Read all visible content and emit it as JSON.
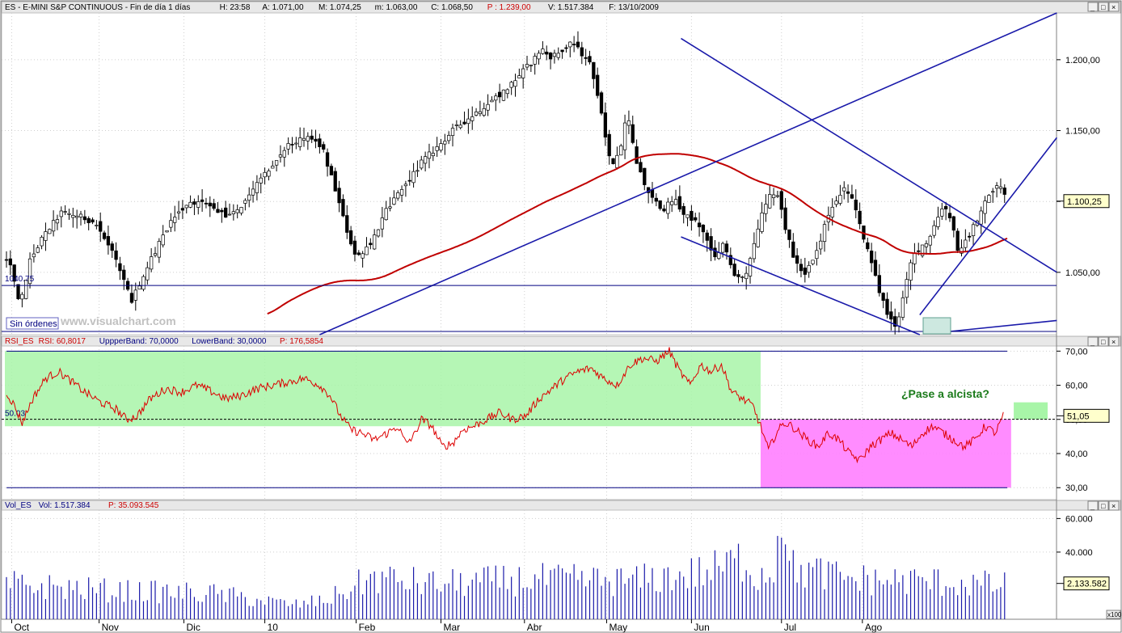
{
  "header": {
    "price": [
      {
        "text": "ES - E-MINI S&P CONTINUOUS - Fin de día 1 días",
        "color": "#000000"
      },
      {
        "text": "H: 23:58",
        "color": "#000000"
      },
      {
        "text": "A: 1.071,00",
        "color": "#000000"
      },
      {
        "text": "M: 1.074,25",
        "color": "#000000"
      },
      {
        "text": "m: 1.063,00",
        "color": "#000000"
      },
      {
        "text": "C: 1.068,50",
        "color": "#000000"
      },
      {
        "text": "P : 1.239,00",
        "color": "#cc0000"
      },
      {
        "text": "V: 1.517.384",
        "color": "#000000"
      },
      {
        "text": "F: 13/10/2009",
        "color": "#000000"
      }
    ],
    "rsi": [
      {
        "text": "RSI_ES",
        "color": "#cc0000"
      },
      {
        "text": "RSI: 60,8017",
        "color": "#cc0000"
      },
      {
        "text": "UppperBand: 70,0000",
        "color": "#000080"
      },
      {
        "text": "LowerBand: 30,0000",
        "color": "#000080"
      },
      {
        "text": "P: 176,5854",
        "color": "#cc0000"
      }
    ],
    "vol": [
      {
        "text": "Vol_ES",
        "color": "#000080"
      },
      {
        "text": "Vol: 1.517.384",
        "color": "#000080"
      },
      {
        "text": "P: 35.093.545",
        "color": "#cc0000"
      }
    ]
  },
  "watermark": "www.visualchart.com",
  "orders_label": "Sin órdenes",
  "x100_label": "x100",
  "chart_data": [
    {
      "type": "candlestick",
      "x_months": [
        "Oct",
        "Nov",
        "Dic",
        "10",
        "Feb",
        "Mar",
        "Abr",
        "May",
        "Jun",
        "Jul",
        "Ago"
      ],
      "y_ticks": [
        "1.200,00",
        "1.150,00",
        "1.100,00",
        "1.050,00"
      ],
      "y_tick_values": [
        1200,
        1150,
        1100,
        1050
      ],
      "ylim": [
        1006,
        1233
      ],
      "current_value": 1100.25,
      "current_label": "1.100,25",
      "horizontal_level": 1040.75,
      "horizontal_level_label": "1040.75",
      "keypoints": [
        [
          0,
          1058
        ],
        [
          5,
          1050
        ],
        [
          10,
          1025
        ],
        [
          18,
          1058
        ],
        [
          28,
          1075
        ],
        [
          42,
          1092
        ],
        [
          55,
          1090
        ],
        [
          68,
          1085
        ],
        [
          82,
          1062
        ],
        [
          96,
          1030
        ],
        [
          110,
          1058
        ],
        [
          125,
          1085
        ],
        [
          140,
          1100
        ],
        [
          155,
          1098
        ],
        [
          168,
          1090
        ],
        [
          182,
          1098
        ],
        [
          196,
          1118
        ],
        [
          208,
          1128
        ],
        [
          214,
          1138
        ],
        [
          222,
          1142
        ],
        [
          232,
          1145
        ],
        [
          242,
          1138
        ],
        [
          252,
          1108
        ],
        [
          260,
          1082
        ],
        [
          268,
          1060
        ],
        [
          280,
          1072
        ],
        [
          292,
          1095
        ],
        [
          305,
          1110
        ],
        [
          318,
          1128
        ],
        [
          330,
          1138
        ],
        [
          342,
          1150
        ],
        [
          356,
          1160
        ],
        [
          370,
          1170
        ],
        [
          384,
          1180
        ],
        [
          396,
          1192
        ],
        [
          404,
          1200
        ],
        [
          410,
          1208
        ],
        [
          416,
          1202
        ],
        [
          424,
          1205
        ],
        [
          434,
          1212
        ],
        [
          440,
          1205
        ],
        [
          446,
          1200
        ],
        [
          452,
          1182
        ],
        [
          458,
          1150
        ],
        [
          464,
          1125
        ],
        [
          470,
          1135
        ],
        [
          476,
          1165
        ],
        [
          482,
          1128
        ],
        [
          490,
          1110
        ],
        [
          496,
          1100
        ],
        [
          504,
          1095
        ],
        [
          512,
          1102
        ],
        [
          518,
          1092
        ],
        [
          526,
          1088
        ],
        [
          534,
          1078
        ],
        [
          542,
          1060
        ],
        [
          550,
          1070
        ],
        [
          556,
          1050
        ],
        [
          566,
          1045
        ],
        [
          574,
          1075
        ],
        [
          582,
          1100
        ],
        [
          590,
          1108
        ],
        [
          596,
          1085
        ],
        [
          604,
          1058
        ],
        [
          612,
          1048
        ],
        [
          620,
          1062
        ],
        [
          628,
          1085
        ],
        [
          636,
          1102
        ],
        [
          642,
          1108
        ],
        [
          650,
          1098
        ],
        [
          660,
          1065
        ],
        [
          668,
          1040
        ],
        [
          676,
          1018
        ],
        [
          682,
          1012
        ],
        [
          688,
          1035
        ],
        [
          694,
          1060
        ],
        [
          700,
          1068
        ],
        [
          706,
          1072
        ],
        [
          712,
          1085
        ],
        [
          718,
          1098
        ],
        [
          724,
          1088
        ],
        [
          730,
          1062
        ],
        [
          740,
          1080
        ],
        [
          750,
          1100
        ],
        [
          760,
          1112
        ],
        [
          767,
          1103
        ]
      ]
    },
    {
      "type": "line",
      "indicator": "RSI",
      "y_ticks": [
        "70,00",
        "60,00",
        "50,00",
        "40,00",
        "30,00"
      ],
      "y_tick_values": [
        70,
        60,
        50,
        40,
        30
      ],
      "ylim": [
        26.5,
        71.5
      ],
      "upper_band": 70,
      "lower_band": 30,
      "reference_level": 50.03,
      "reference_label": "50.03",
      "current_value": 51.05,
      "current_label": "51,05",
      "annotation": "¿Pase a alcista?",
      "keypoints": [
        [
          0,
          58
        ],
        [
          6,
          54
        ],
        [
          12,
          49
        ],
        [
          20,
          56
        ],
        [
          30,
          62
        ],
        [
          40,
          64
        ],
        [
          50,
          61
        ],
        [
          60,
          58
        ],
        [
          72,
          55
        ],
        [
          84,
          53
        ],
        [
          92,
          50
        ],
        [
          100,
          51
        ],
        [
          110,
          56
        ],
        [
          122,
          59
        ],
        [
          134,
          58
        ],
        [
          146,
          60
        ],
        [
          158,
          58
        ],
        [
          168,
          56
        ],
        [
          180,
          57
        ],
        [
          192,
          59
        ],
        [
          204,
          60
        ],
        [
          216,
          61
        ],
        [
          228,
          62
        ],
        [
          240,
          60
        ],
        [
          248,
          57
        ],
        [
          256,
          51
        ],
        [
          264,
          47
        ],
        [
          272,
          46
        ],
        [
          282,
          44
        ],
        [
          292,
          46
        ],
        [
          300,
          48
        ],
        [
          306,
          43
        ],
        [
          312,
          45
        ],
        [
          318,
          50
        ],
        [
          326,
          48
        ],
        [
          334,
          42
        ],
        [
          342,
          43
        ],
        [
          350,
          47
        ],
        [
          358,
          48
        ],
        [
          368,
          50
        ],
        [
          378,
          52
        ],
        [
          388,
          50
        ],
        [
          398,
          51
        ],
        [
          408,
          56
        ],
        [
          418,
          59
        ],
        [
          428,
          62
        ],
        [
          438,
          64
        ],
        [
          448,
          65
        ],
        [
          458,
          62
        ],
        [
          468,
          60
        ],
        [
          478,
          66
        ],
        [
          488,
          68
        ],
        [
          498,
          67
        ],
        [
          508,
          70
        ],
        [
          516,
          64
        ],
        [
          524,
          60
        ],
        [
          532,
          66
        ],
        [
          540,
          64
        ],
        [
          548,
          66
        ],
        [
          556,
          58
        ],
        [
          564,
          56
        ],
        [
          572,
          54
        ],
        [
          578,
          48
        ],
        [
          584,
          41
        ],
        [
          590,
          46
        ],
        [
          596,
          49
        ],
        [
          602,
          48
        ],
        [
          608,
          46
        ],
        [
          614,
          44
        ],
        [
          622,
          42
        ],
        [
          630,
          46
        ],
        [
          638,
          44
        ],
        [
          646,
          40
        ],
        [
          654,
          38
        ],
        [
          662,
          42
        ],
        [
          670,
          44
        ],
        [
          678,
          46
        ],
        [
          686,
          44
        ],
        [
          694,
          42
        ],
        [
          702,
          46
        ],
        [
          710,
          48
        ],
        [
          718,
          46
        ],
        [
          726,
          44
        ],
        [
          734,
          42
        ],
        [
          742,
          44
        ],
        [
          750,
          48
        ],
        [
          758,
          46
        ],
        [
          764,
          51
        ]
      ]
    },
    {
      "type": "bar",
      "indicator": "Volume",
      "y_ticks": [
        "60.000",
        "40.000"
      ],
      "y_tick_values": [
        60000,
        40000
      ],
      "ylim": [
        0,
        65000
      ],
      "current_value": 21335.82,
      "current_label": "2.133.582",
      "unit_label": "x100",
      "keypoints": [
        [
          0,
          22000
        ],
        [
          80,
          18000
        ],
        [
          160,
          16000
        ],
        [
          220,
          9000
        ],
        [
          245,
          12000
        ],
        [
          280,
          26000
        ],
        [
          330,
          22000
        ],
        [
          400,
          25000
        ],
        [
          480,
          24000
        ],
        [
          540,
          30000
        ],
        [
          565,
          38000
        ],
        [
          575,
          28000
        ],
        [
          600,
          32000
        ],
        [
          650,
          25000
        ],
        [
          700,
          24000
        ],
        [
          767,
          21000
        ]
      ]
    }
  ]
}
